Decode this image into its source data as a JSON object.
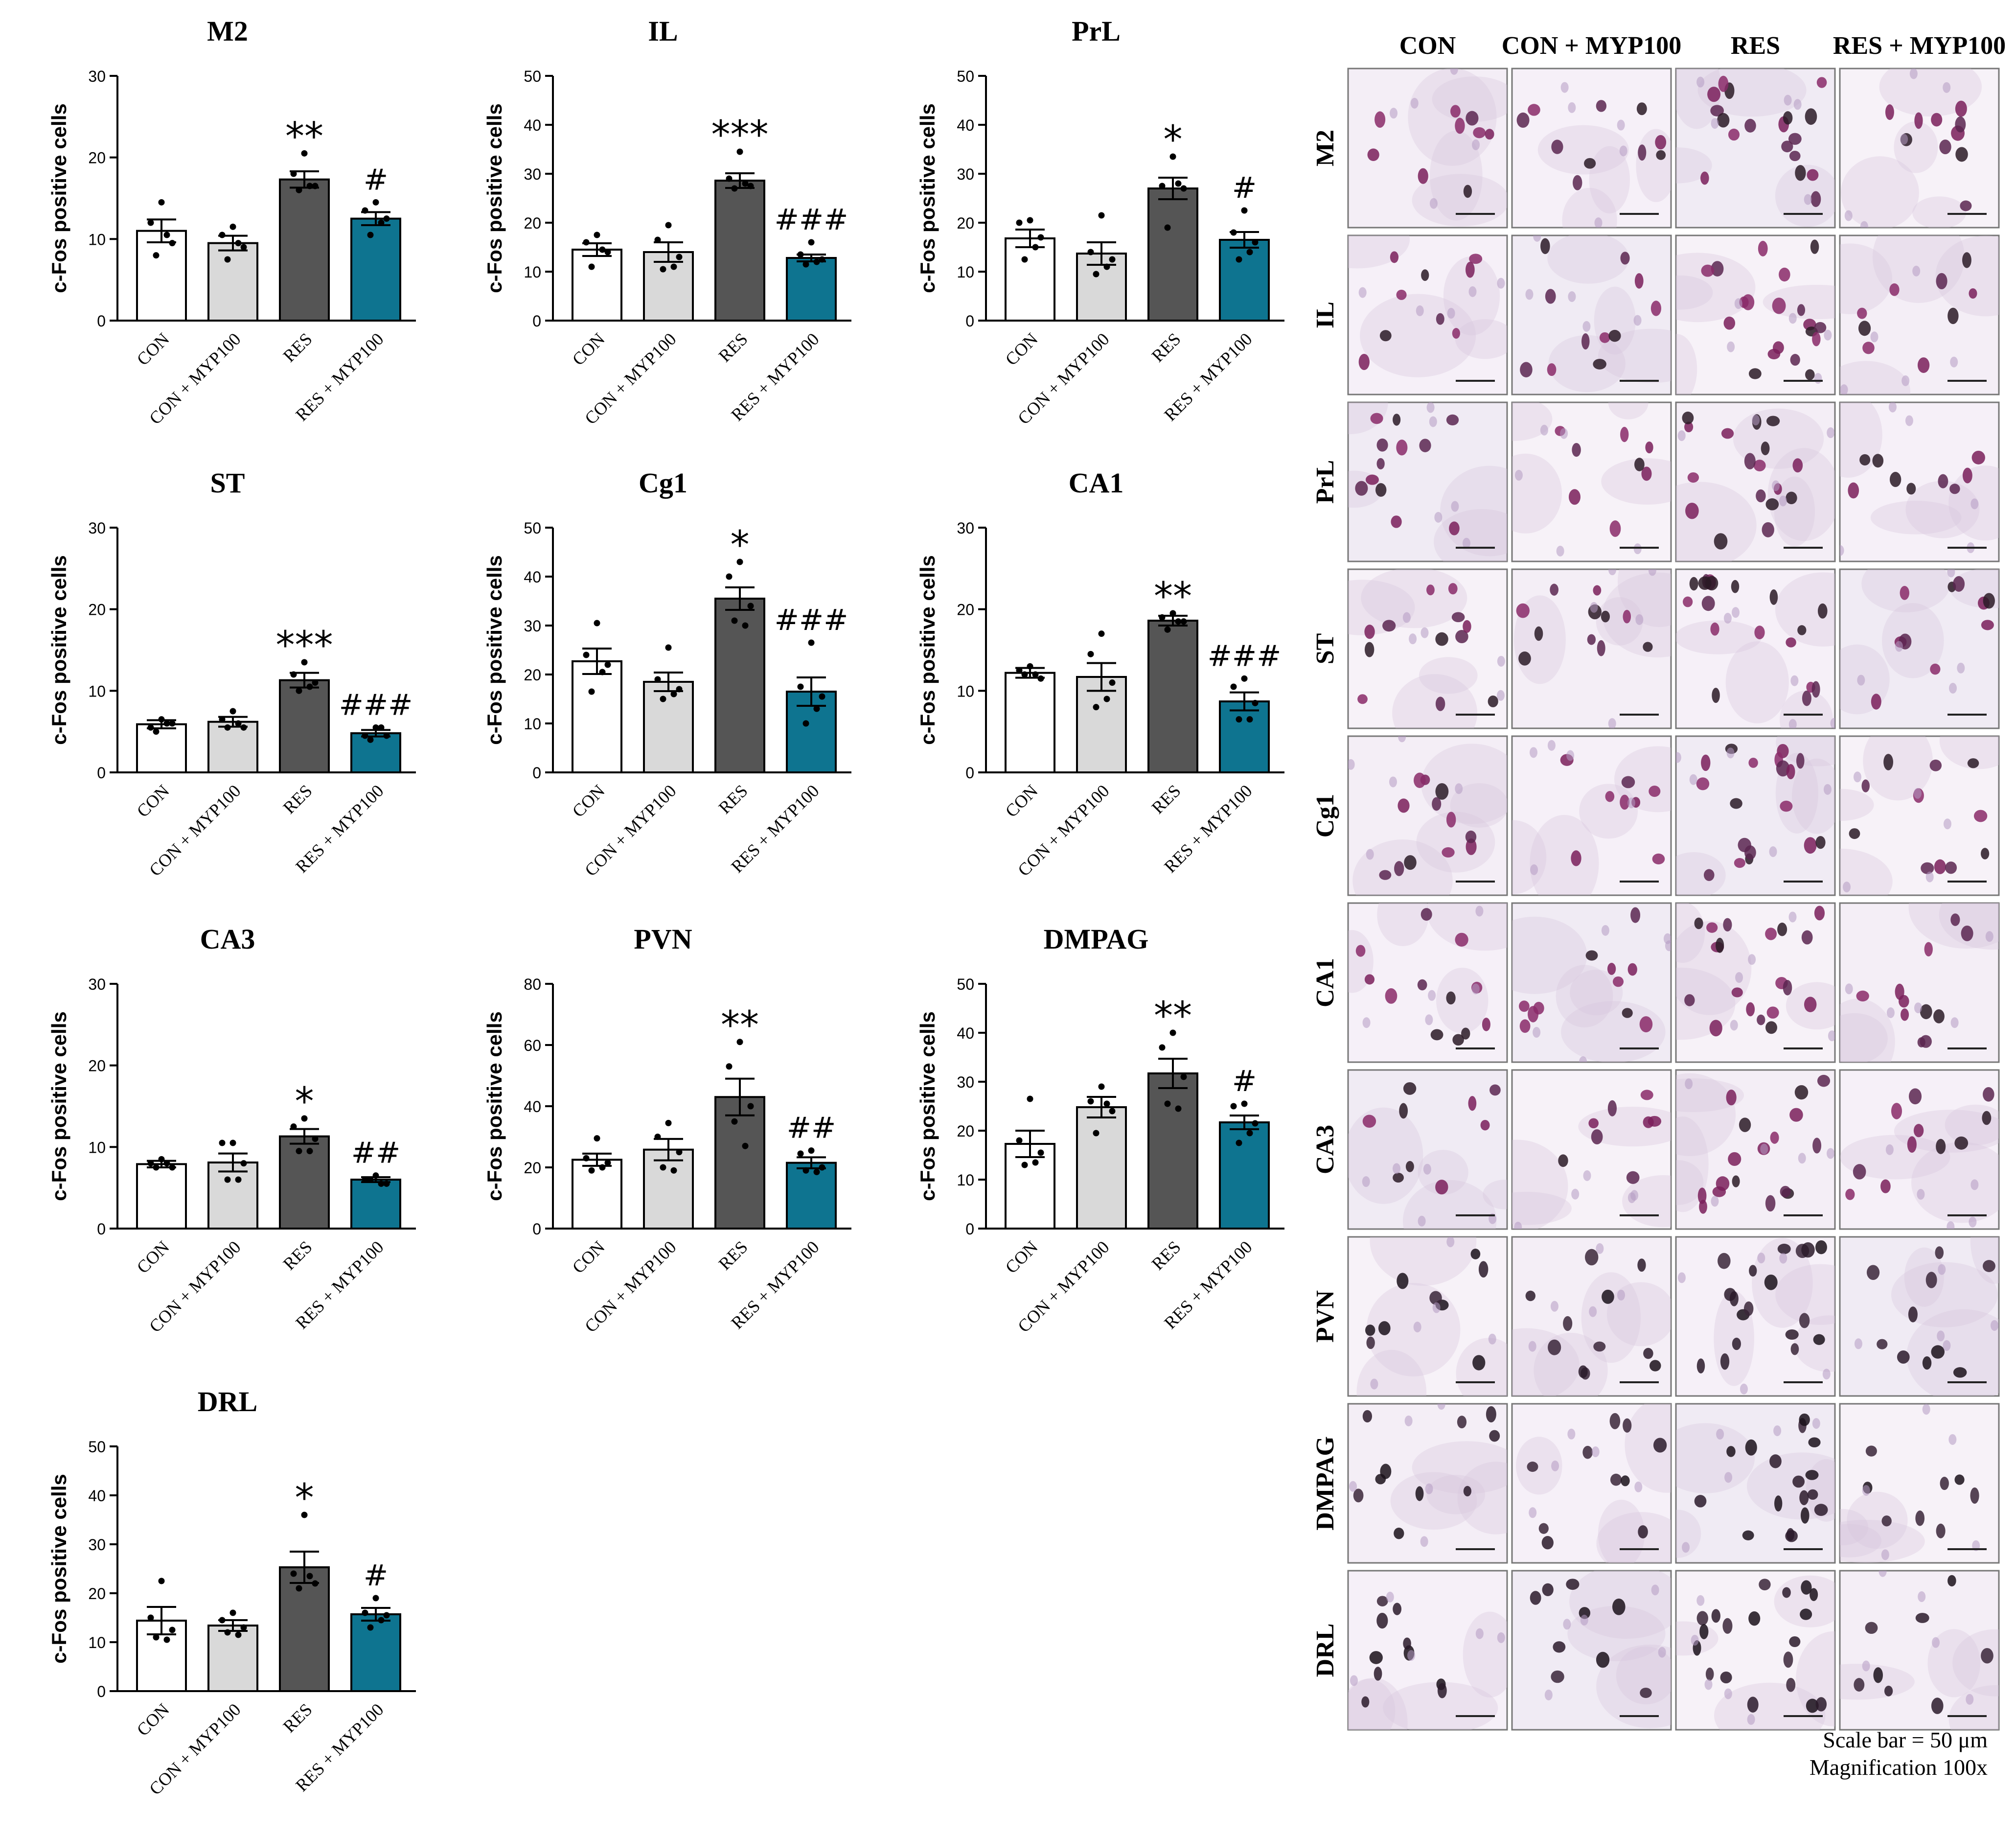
{
  "categories": [
    "CON",
    "CON + MYP100",
    "RES",
    "RES + MYP100"
  ],
  "ylabel": "c-Fos positive cells",
  "colors": {
    "CON": "#ffffff",
    "CON + MYP100": "#d9d9d9",
    "RES": "#555555",
    "RES + MYP100": "#0e7490"
  },
  "chart_data": [
    {
      "type": "bar",
      "title": "M2",
      "ylim": [
        0,
        30
      ],
      "yticks": [
        0,
        10,
        20,
        30
      ],
      "values": [
        11,
        9.5,
        17.3,
        12.5
      ],
      "errors": [
        1.4,
        0.9,
        1.0,
        0.8
      ],
      "points": [
        [
          14.5,
          12,
          9.5,
          8,
          10.5
        ],
        [
          11.5,
          10.5,
          9,
          7.5,
          9.5
        ],
        [
          20.5,
          18,
          16.5,
          16,
          16.5
        ],
        [
          14.5,
          13.5,
          12.5,
          10.5,
          12
        ]
      ],
      "annotations": [
        "",
        "",
        "**",
        "#"
      ]
    },
    {
      "type": "bar",
      "title": "IL",
      "ylim": [
        0,
        50
      ],
      "yticks": [
        0,
        10,
        20,
        30,
        40,
        50
      ],
      "values": [
        14.5,
        14,
        28.6,
        12.8
      ],
      "errors": [
        1.3,
        2.0,
        1.5,
        0.7
      ],
      "points": [
        [
          17.5,
          16,
          14,
          11,
          14.5
        ],
        [
          19.5,
          16.5,
          13,
          10.5,
          11
        ],
        [
          34.5,
          29,
          27.5,
          27,
          28
        ],
        [
          16,
          13.5,
          12.5,
          11.5,
          12
        ]
      ],
      "annotations": [
        "",
        "",
        "***",
        "###"
      ]
    },
    {
      "type": "bar",
      "title": "PrL",
      "ylim": [
        0,
        50
      ],
      "yticks": [
        0,
        10,
        20,
        30,
        40,
        50
      ],
      "values": [
        16.8,
        13.7,
        27,
        16.5
      ],
      "errors": [
        1.8,
        2.3,
        2.2,
        1.6
      ],
      "points": [
        [
          20.5,
          20,
          17,
          12.5,
          15
        ],
        [
          21.5,
          14,
          12.5,
          9.5,
          11
        ],
        [
          33.5,
          27.5,
          27,
          19,
          28
        ],
        [
          22.5,
          18,
          16,
          12.5,
          14
        ]
      ],
      "annotations": [
        "",
        "",
        "*",
        "#"
      ]
    },
    {
      "type": "bar",
      "title": "ST",
      "ylim": [
        0,
        30
      ],
      "yticks": [
        0,
        10,
        20,
        30
      ],
      "values": [
        5.9,
        6.2,
        11.3,
        4.8
      ],
      "errors": [
        0.5,
        0.6,
        0.9,
        0.4
      ],
      "points": [
        [
          6.5,
          5.5,
          6,
          5,
          6
        ],
        [
          7.5,
          6.5,
          5.5,
          5.5,
          6
        ],
        [
          13.5,
          12,
          11,
          10,
          10.5
        ],
        [
          5.5,
          4.5,
          4.5,
          4,
          5.5
        ]
      ],
      "annotations": [
        "",
        "",
        "***",
        "###"
      ]
    },
    {
      "type": "bar",
      "title": "Cg1",
      "ylim": [
        0,
        50
      ],
      "yticks": [
        0,
        10,
        20,
        30,
        40,
        50
      ],
      "values": [
        22.7,
        18.5,
        35.5,
        16.5
      ],
      "errors": [
        2.6,
        1.9,
        2.3,
        2.9
      ],
      "points": [
        [
          30.5,
          24,
          22,
          16.5,
          20.5
        ],
        [
          25.5,
          19,
          17,
          15,
          16
        ],
        [
          43,
          40,
          34,
          31,
          30
        ],
        [
          26.5,
          17.5,
          15.5,
          10,
          13
        ]
      ],
      "annotations": [
        "",
        "",
        "*",
        "###"
      ]
    },
    {
      "type": "bar",
      "title": "CA1",
      "ylim": [
        0,
        30
      ],
      "yticks": [
        0,
        10,
        20,
        30
      ],
      "values": [
        12.2,
        11.7,
        18.6,
        8.7
      ],
      "errors": [
        0.6,
        1.7,
        0.6,
        1.1
      ],
      "points": [
        [
          13,
          12.5,
          11.5,
          12,
          12
        ],
        [
          17,
          14.5,
          11,
          8,
          9
        ],
        [
          19.5,
          19,
          18.5,
          17.5,
          18.5
        ],
        [
          11.5,
          10.5,
          8.5,
          6.5,
          6.5
        ]
      ],
      "annotations": [
        "",
        "",
        "**",
        "###"
      ]
    },
    {
      "type": "bar",
      "title": "CA3",
      "ylim": [
        0,
        30
      ],
      "yticks": [
        0,
        10,
        20,
        30
      ],
      "values": [
        7.9,
        8.1,
        11.3,
        6
      ],
      "errors": [
        0.4,
        1.1,
        0.9,
        0.3
      ],
      "points": [
        [
          8.5,
          8,
          7.5,
          7.5,
          8
        ],
        [
          10.5,
          10.5,
          8,
          6,
          6
        ],
        [
          13.5,
          12.5,
          11,
          9.5,
          9.5
        ],
        [
          6.5,
          6,
          5.5,
          6,
          5.5
        ]
      ],
      "annotations": [
        "",
        "",
        "*",
        "##"
      ]
    },
    {
      "type": "bar",
      "title": "PVN",
      "ylim": [
        0,
        80
      ],
      "yticks": [
        0,
        20,
        40,
        60,
        80
      ],
      "values": [
        22.5,
        25.8,
        43,
        21.5
      ],
      "errors": [
        2.0,
        3.5,
        6.0,
        1.8
      ],
      "points": [
        [
          29.5,
          23,
          21.5,
          19,
          20
        ],
        [
          34.5,
          30,
          25,
          20,
          19
        ],
        [
          61,
          53,
          40,
          35,
          27
        ],
        [
          25.5,
          24.5,
          20,
          19,
          18.5
        ]
      ],
      "annotations": [
        "",
        "",
        "**",
        "##"
      ]
    },
    {
      "type": "bar",
      "title": "DMPAG",
      "ylim": [
        0,
        50
      ],
      "yticks": [
        0,
        10,
        20,
        30,
        40,
        50
      ],
      "values": [
        17.3,
        24.8,
        31.7,
        21.7
      ],
      "errors": [
        2.7,
        2.1,
        3.0,
        1.4
      ],
      "points": [
        [
          26.5,
          18,
          15.5,
          13,
          13.5
        ],
        [
          29,
          26,
          24,
          19.5,
          25.5
        ],
        [
          40,
          37,
          31,
          25.5,
          24.5
        ],
        [
          25.5,
          25,
          21.5,
          17.5,
          19.5
        ]
      ],
      "annotations": [
        "",
        "",
        "**",
        "#"
      ]
    },
    {
      "type": "bar",
      "title": "DRL",
      "ylim": [
        0,
        50
      ],
      "yticks": [
        0,
        10,
        20,
        30,
        40,
        50
      ],
      "values": [
        14.4,
        13.4,
        25.3,
        15.7
      ],
      "errors": [
        2.8,
        1.1,
        3.2,
        1.3
      ],
      "points": [
        [
          22.5,
          15,
          12.5,
          11,
          10.5
        ],
        [
          16,
          14.5,
          13,
          12,
          11.5
        ],
        [
          36,
          24,
          22,
          21,
          23.5
        ],
        [
          19,
          16,
          15.5,
          13,
          14.5
        ]
      ],
      "annotations": [
        "",
        "",
        "*",
        "#"
      ]
    }
  ],
  "micro": {
    "columns": [
      "CON",
      "CON + MYP100",
      "RES",
      "RES + MYP100"
    ],
    "rows": [
      "M2",
      "IL",
      "PrL",
      "ST",
      "Cg1",
      "CA1",
      "CA3",
      "PVN",
      "DMPAG",
      "DRL"
    ],
    "scale_bar": "Scale bar = 50 μm",
    "magnification": "Magnification 100x"
  }
}
